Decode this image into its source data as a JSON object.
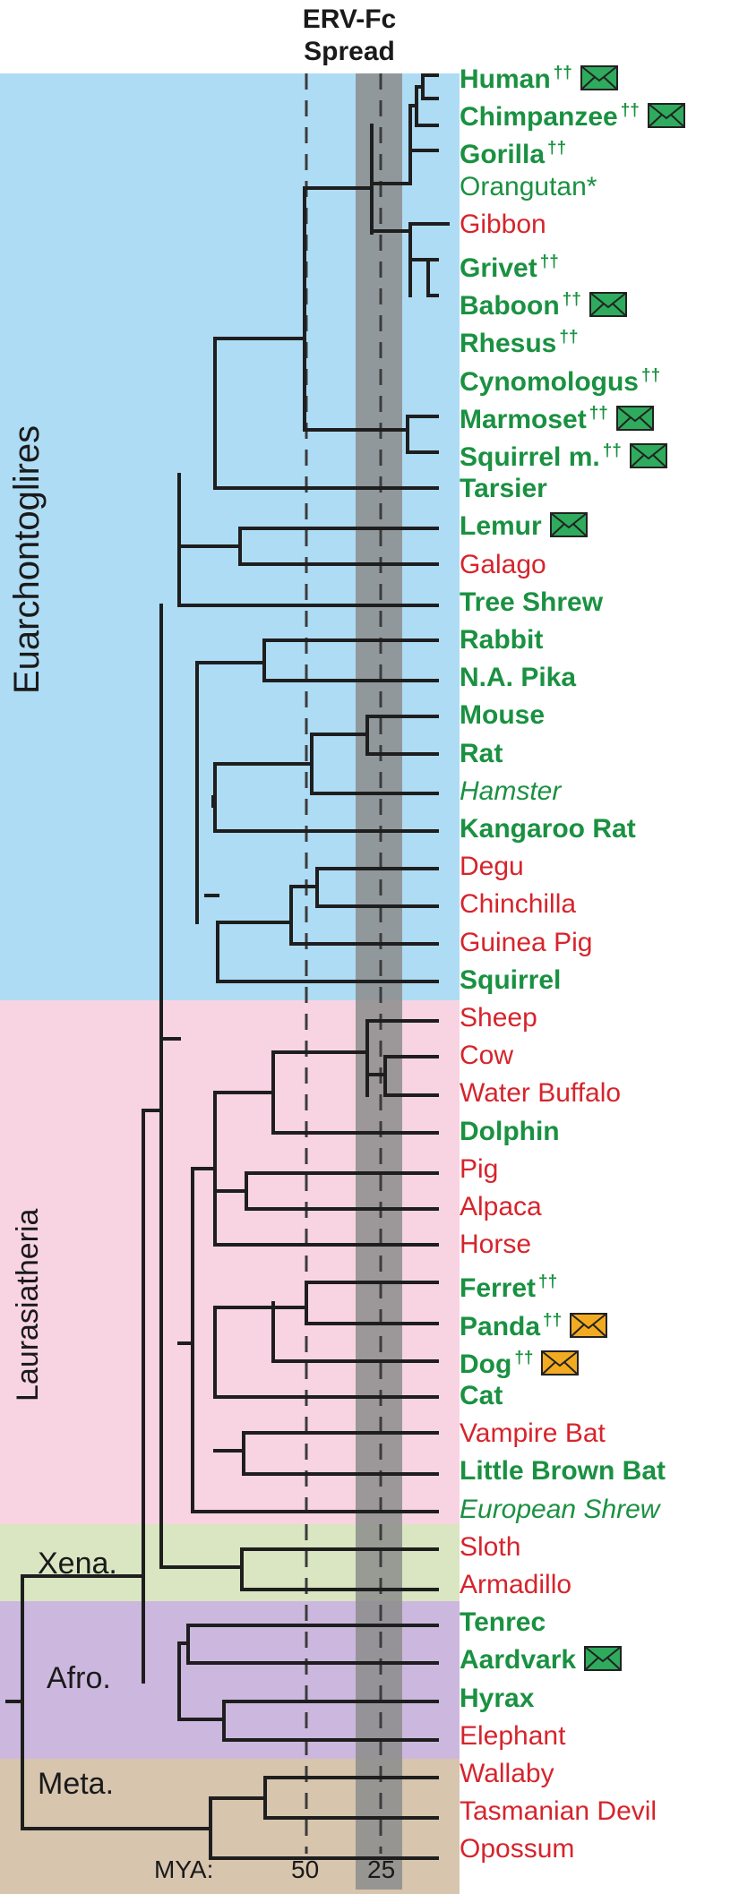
{
  "chart_data": {
    "type": "phylogenetic-tree",
    "title_line1": "ERV-Fc",
    "title_line2": "Spread",
    "axis": {
      "label": "MYA:",
      "ticks": [
        "50",
        "25"
      ]
    },
    "colors": {
      "green": "#1a9141",
      "red": "#d6242c",
      "envelope_green": "#2eab5c",
      "envelope_orange": "#f2ab21"
    },
    "clades": [
      {
        "label": "Euarchontoglires"
      },
      {
        "label": "Laurasiatheria"
      },
      {
        "label": "Xena."
      },
      {
        "label": "Afro."
      },
      {
        "label": "Meta."
      }
    ],
    "taxa": [
      {
        "name": "Human",
        "color": "green",
        "bold": true,
        "dagger": "††",
        "envelope": "green"
      },
      {
        "name": "Chimpanzee",
        "color": "green",
        "bold": true,
        "dagger": "††",
        "envelope": "green"
      },
      {
        "name": "Gorilla",
        "color": "green",
        "bold": true,
        "dagger": "††"
      },
      {
        "name": "Orangutan*",
        "color": "green"
      },
      {
        "name": "Gibbon",
        "color": "red"
      },
      {
        "name": "Grivet",
        "color": "green",
        "bold": true,
        "dagger": "††"
      },
      {
        "name": "Baboon",
        "color": "green",
        "bold": true,
        "dagger": "††",
        "envelope": "green"
      },
      {
        "name": "Rhesus",
        "color": "green",
        "bold": true,
        "dagger": "††"
      },
      {
        "name": "Cynomologus",
        "color": "green",
        "bold": true,
        "dagger": "††"
      },
      {
        "name": "Marmoset",
        "color": "green",
        "bold": true,
        "dagger": "††",
        "envelope": "green"
      },
      {
        "name": "Squirrel m.",
        "color": "green",
        "bold": true,
        "dagger": "††",
        "envelope": "green"
      },
      {
        "name": "Tarsier",
        "color": "green",
        "bold": true
      },
      {
        "name": "Lemur",
        "color": "green",
        "bold": true,
        "envelope": "green"
      },
      {
        "name": "Galago",
        "color": "red"
      },
      {
        "name": "Tree Shrew",
        "color": "green",
        "bold": true
      },
      {
        "name": "Rabbit",
        "color": "green",
        "bold": true
      },
      {
        "name": "N.A. Pika",
        "color": "green",
        "bold": true
      },
      {
        "name": "Mouse",
        "color": "green",
        "bold": true
      },
      {
        "name": "Rat",
        "color": "green",
        "bold": true
      },
      {
        "name": "Hamster",
        "color": "green",
        "italic": true
      },
      {
        "name": "Kangaroo Rat",
        "color": "green",
        "bold": true
      },
      {
        "name": "Degu",
        "color": "red"
      },
      {
        "name": "Chinchilla",
        "color": "red"
      },
      {
        "name": "Guinea Pig",
        "color": "red"
      },
      {
        "name": "Squirrel",
        "color": "green",
        "bold": true
      },
      {
        "name": "Sheep",
        "color": "red"
      },
      {
        "name": "Cow",
        "color": "red"
      },
      {
        "name": "Water Buffalo",
        "color": "red"
      },
      {
        "name": "Dolphin",
        "color": "green",
        "bold": true
      },
      {
        "name": "Pig",
        "color": "red"
      },
      {
        "name": "Alpaca",
        "color": "red"
      },
      {
        "name": "Horse",
        "color": "red"
      },
      {
        "name": "Ferret",
        "color": "green",
        "bold": true,
        "dagger": "††"
      },
      {
        "name": "Panda",
        "color": "green",
        "bold": true,
        "dagger": "††",
        "envelope": "orange"
      },
      {
        "name": "Dog",
        "color": "green",
        "bold": true,
        "dagger": "††",
        "envelope": "orange"
      },
      {
        "name": "Cat",
        "color": "green",
        "bold": true
      },
      {
        "name": "Vampire Bat",
        "color": "red"
      },
      {
        "name": "Little Brown Bat",
        "color": "green",
        "bold": true
      },
      {
        "name": "European Shrew",
        "color": "green",
        "italic": true
      },
      {
        "name": "Sloth",
        "color": "red"
      },
      {
        "name": "Armadillo",
        "color": "red"
      },
      {
        "name": "Tenrec",
        "color": "green",
        "bold": true
      },
      {
        "name": "Aardvark",
        "color": "green",
        "bold": true,
        "envelope": "green"
      },
      {
        "name": "Hyrax",
        "color": "green",
        "bold": true
      },
      {
        "name": "Elephant",
        "color": "red"
      },
      {
        "name": "Wallaby",
        "color": "red"
      },
      {
        "name": "Tasmanian Devil",
        "color": "red"
      },
      {
        "name": "Opossum",
        "color": "red"
      }
    ]
  }
}
